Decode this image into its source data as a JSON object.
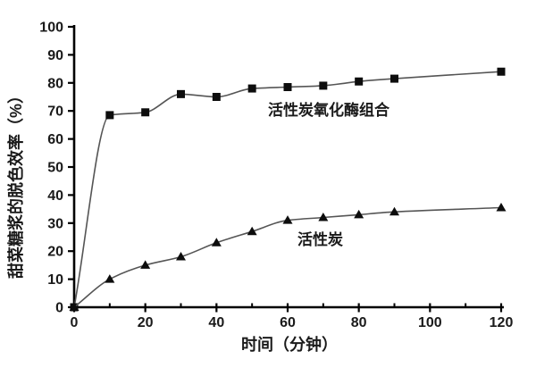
{
  "chart_data": {
    "type": "line",
    "title": "",
    "xlabel": "时间（分钟）",
    "ylabel": "甜菜糖浆的脱色效率（%）",
    "xlim": [
      0,
      120
    ],
    "ylim": [
      0,
      100
    ],
    "x_major_ticks": [
      0,
      20,
      40,
      60,
      80,
      100,
      120
    ],
    "x_minor_ticks": [
      10,
      30,
      50,
      70,
      90,
      110
    ],
    "y_ticks": [
      0,
      10,
      20,
      30,
      40,
      50,
      60,
      70,
      80,
      90,
      100
    ],
    "grid": false,
    "legend_position": "inline-annotations",
    "line_style": "smooth",
    "series": [
      {
        "name": "活性炭氧化酶组合",
        "marker": "square",
        "x": [
          0,
          10,
          20,
          30,
          40,
          50,
          60,
          70,
          80,
          90,
          120
        ],
        "y": [
          0,
          68.5,
          69.5,
          76,
          75,
          78,
          78.5,
          79,
          80.5,
          81.5,
          84
        ]
      },
      {
        "name": "活性炭",
        "marker": "triangle",
        "x": [
          0,
          10,
          20,
          30,
          40,
          50,
          60,
          70,
          80,
          90,
          120
        ],
        "y": [
          0,
          10,
          15,
          18,
          23,
          27,
          31,
          32,
          33,
          34,
          35.5
        ]
      }
    ],
    "colors": {
      "line": "#555555",
      "marker": "#0d0d0d",
      "axis": "#000000",
      "text": "#1a1a1a",
      "background": "#ffffff"
    }
  }
}
